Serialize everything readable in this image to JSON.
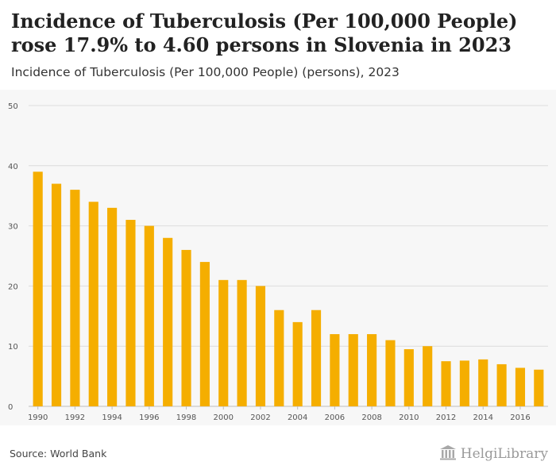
{
  "header": {
    "title": "Incidence of Tuberculosis (Per 100,000 People) rose 17.9% to 4.60 persons in Slovenia in 2023",
    "subtitle": "Incidence of Tuberculosis (Per 100,000 People) (persons), 2023"
  },
  "footer": {
    "source": "Source: World Bank",
    "logo_text": "HelgiLibrary"
  },
  "colors": {
    "bar": "#f5ae00",
    "grid": "#dcdcdc",
    "background": "#f7f7f7",
    "tick_text": "#555555"
  },
  "chart_data": {
    "type": "bar",
    "title": "Incidence of Tuberculosis (Per 100,000 People) rose 17.9% to 4.60 persons in Slovenia in 2023",
    "subtitle": "Incidence of Tuberculosis (Per 100,000 People) (persons), 2023",
    "xlabel": "",
    "ylabel": "",
    "ylim": [
      0,
      50
    ],
    "y_ticks": [
      0,
      10,
      20,
      30,
      40,
      50
    ],
    "grid": true,
    "categories": [
      "1990",
      "1991",
      "1992",
      "1993",
      "1994",
      "1995",
      "1996",
      "1997",
      "1998",
      "1999",
      "2000",
      "2001",
      "2002",
      "2003",
      "2004",
      "2005",
      "2006",
      "2007",
      "2008",
      "2009",
      "2010",
      "2011",
      "2012",
      "2013",
      "2014",
      "2015",
      "2016",
      "2017"
    ],
    "x_tick_labels": [
      "1990",
      "1992",
      "1994",
      "1996",
      "1998",
      "2000",
      "2002",
      "2004",
      "2006",
      "2008",
      "2010",
      "2012",
      "2014",
      "2016"
    ],
    "values": [
      39,
      37,
      36,
      34,
      33,
      31,
      30,
      28,
      26,
      24,
      21,
      21,
      20,
      16,
      14,
      16,
      12,
      12,
      12,
      11,
      9.5,
      10,
      7.5,
      7.6,
      7.8,
      7.0,
      6.4,
      6.1
    ]
  }
}
